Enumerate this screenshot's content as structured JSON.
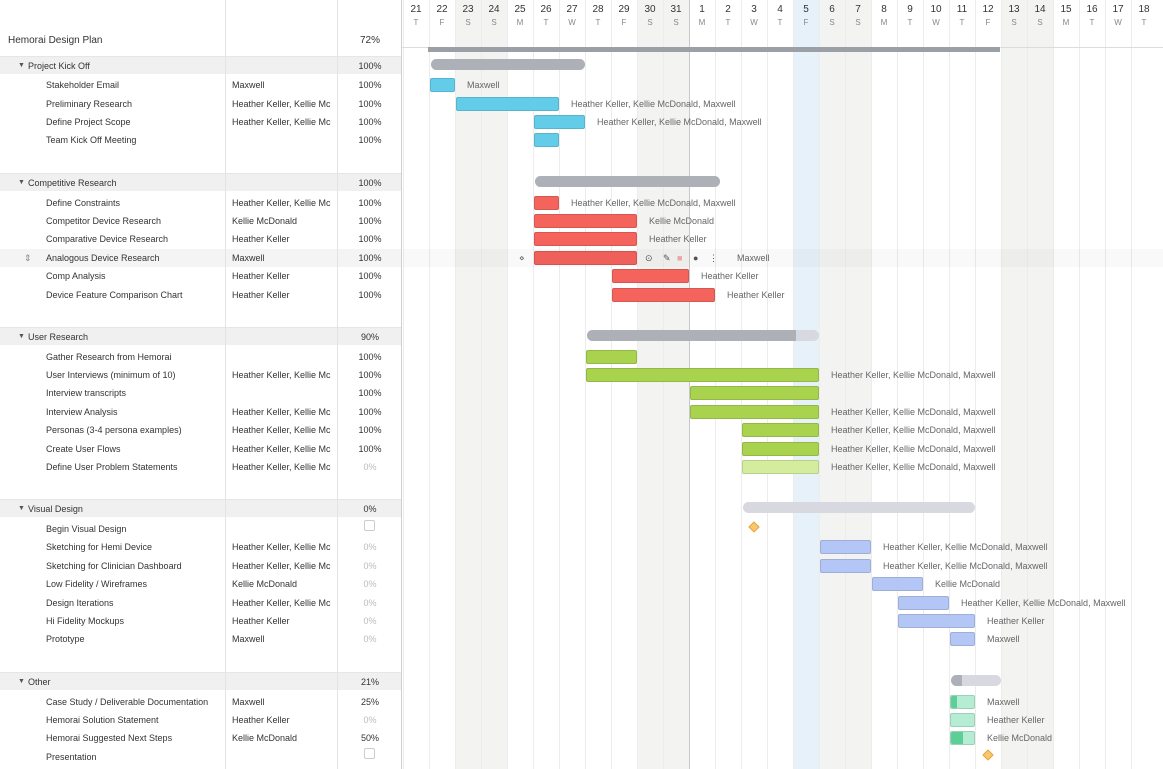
{
  "plan": {
    "title": "Hemorai Design Plan",
    "percent": "72%"
  },
  "days": [
    {
      "num": "21",
      "let": "T"
    },
    {
      "num": "22",
      "let": "F"
    },
    {
      "num": "23",
      "let": "S"
    },
    {
      "num": "24",
      "let": "S"
    },
    {
      "num": "25",
      "let": "M"
    },
    {
      "num": "26",
      "let": "T"
    },
    {
      "num": "27",
      "let": "W"
    },
    {
      "num": "28",
      "let": "T"
    },
    {
      "num": "29",
      "let": "F"
    },
    {
      "num": "30",
      "let": "S"
    },
    {
      "num": "31",
      "let": "S"
    },
    {
      "num": "1",
      "let": "M"
    },
    {
      "num": "2",
      "let": "T"
    },
    {
      "num": "3",
      "let": "W"
    },
    {
      "num": "4",
      "let": "T"
    },
    {
      "num": "5",
      "let": "F"
    },
    {
      "num": "6",
      "let": "S"
    },
    {
      "num": "7",
      "let": "S"
    },
    {
      "num": "8",
      "let": "M"
    },
    {
      "num": "9",
      "let": "T"
    },
    {
      "num": "10",
      "let": "W"
    },
    {
      "num": "11",
      "let": "T"
    },
    {
      "num": "12",
      "let": "F"
    },
    {
      "num": "13",
      "let": "S"
    },
    {
      "num": "14",
      "let": "S"
    },
    {
      "num": "15",
      "let": "M"
    },
    {
      "num": "16",
      "let": "T"
    },
    {
      "num": "17",
      "let": "W"
    },
    {
      "num": "18",
      "let": "T"
    }
  ],
  "colors": {
    "blue": "#63cde9",
    "red": "#f4635c",
    "green": "#a9d24f",
    "green_light": "#d4ec9e",
    "periwinkle": "#b4c6f5",
    "mint": "#b5ecd4",
    "mint_done": "#5ccf96",
    "group_bar": "#aeb0b8",
    "group_bar_light": "#d7d8e0",
    "milestone": "#f9c76e"
  },
  "groups": [
    {
      "name": "Project Kick Off",
      "percent": "100%",
      "tasks": [
        {
          "name": "Stakeholder Email",
          "assignee": "Maxwell",
          "percent": "100%",
          "label": "Maxwell"
        },
        {
          "name": "Preliminary Research",
          "assignee": "Heather Keller, Kellie Mc",
          "percent": "100%",
          "label": "Heather Keller, Kellie McDonald, Maxwell"
        },
        {
          "name": "Define Project Scope",
          "assignee": "Heather Keller, Kellie Mc",
          "percent": "100%",
          "label": "Heather Keller, Kellie McDonald, Maxwell"
        },
        {
          "name": "Team Kick Off Meeting",
          "assignee": "",
          "percent": "100%",
          "label": ""
        }
      ]
    },
    {
      "name": "Competitive Research",
      "percent": "100%",
      "tasks": [
        {
          "name": "Define Constraints",
          "assignee": "Heather Keller, Kellie Mc",
          "percent": "100%",
          "label": "Heather Keller, Kellie McDonald, Maxwell"
        },
        {
          "name": "Competitor Device Research",
          "assignee": "Kellie McDonald",
          "percent": "100%",
          "label": "Kellie McDonald"
        },
        {
          "name": "Comparative Device Research",
          "assignee": "Heather Keller",
          "percent": "100%",
          "label": "Heather Keller"
        },
        {
          "name": "Analogous Device Research",
          "assignee": "Maxwell",
          "percent": "100%",
          "label": "Maxwell"
        },
        {
          "name": "Comp Analysis",
          "assignee": "Heather Keller",
          "percent": "100%",
          "label": "Heather Keller"
        },
        {
          "name": "Device Feature Comparison Chart",
          "assignee": "Heather Keller",
          "percent": "100%",
          "label": "Heather Keller"
        }
      ]
    },
    {
      "name": "User Research",
      "percent": "90%",
      "tasks": [
        {
          "name": "Gather Research from Hemorai",
          "assignee": "",
          "percent": "100%",
          "label": ""
        },
        {
          "name": "User Interviews (minimum of 10)",
          "assignee": "Heather Keller, Kellie Mc",
          "percent": "100%",
          "label": "Heather Keller, Kellie McDonald, Maxwell"
        },
        {
          "name": "Interview transcripts",
          "assignee": "",
          "percent": "100%",
          "label": ""
        },
        {
          "name": "Interview Analysis",
          "assignee": "Heather Keller, Kellie Mc",
          "percent": "100%",
          "label": "Heather Keller, Kellie McDonald, Maxwell"
        },
        {
          "name": "Personas (3-4 persona examples)",
          "assignee": "Heather Keller, Kellie Mc",
          "percent": "100%",
          "label": "Heather Keller, Kellie McDonald, Maxwell"
        },
        {
          "name": "Create User Flows",
          "assignee": "Heather Keller, Kellie Mc",
          "percent": "100%",
          "label": "Heather Keller, Kellie McDonald, Maxwell"
        },
        {
          "name": "Define User Problem Statements",
          "assignee": "Heather Keller, Kellie Mc",
          "percent": "0%",
          "label": "Heather Keller, Kellie McDonald, Maxwell"
        }
      ]
    },
    {
      "name": "Visual Design",
      "percent": "0%",
      "tasks": [
        {
          "name": "Begin Visual Design",
          "assignee": "",
          "percent": "",
          "label": ""
        },
        {
          "name": "Sketching for Hemi Device",
          "assignee": "Heather Keller, Kellie Mc",
          "percent": "0%",
          "label": "Heather Keller, Kellie McDonald, Maxwell"
        },
        {
          "name": "Sketching for Clinician Dashboard",
          "assignee": "Heather Keller, Kellie Mc",
          "percent": "0%",
          "label": "Heather Keller, Kellie McDonald, Maxwell"
        },
        {
          "name": "Low Fidelity / Wireframes",
          "assignee": "Kellie McDonald",
          "percent": "0%",
          "label": "Kellie McDonald"
        },
        {
          "name": "Design Iterations",
          "assignee": "Heather Keller, Kellie Mc",
          "percent": "0%",
          "label": "Heather Keller, Kellie McDonald, Maxwell"
        },
        {
          "name": "Hi Fidelity Mockups",
          "assignee": "Heather Keller",
          "percent": "0%",
          "label": "Heather Keller"
        },
        {
          "name": "Prototype",
          "assignee": "Maxwell",
          "percent": "0%",
          "label": "Maxwell"
        }
      ]
    },
    {
      "name": "Other",
      "percent": "21%",
      "tasks": [
        {
          "name": "Case Study / Deliverable Documentation",
          "assignee": "Maxwell",
          "percent": "25%",
          "label": "Maxwell"
        },
        {
          "name": "Hemorai Solution Statement",
          "assignee": "Heather Keller",
          "percent": "0%",
          "label": "Heather Keller"
        },
        {
          "name": "Hemorai Suggested Next Steps",
          "assignee": "Kellie McDonald",
          "percent": "50%",
          "label": "Kellie McDonald"
        },
        {
          "name": "Presentation",
          "assignee": "",
          "percent": "",
          "label": ""
        }
      ]
    }
  ]
}
